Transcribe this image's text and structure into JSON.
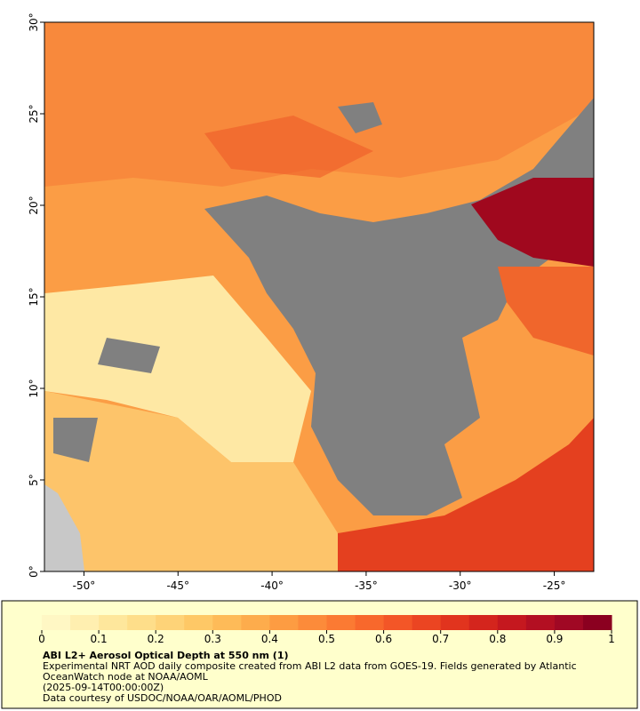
{
  "map": {
    "xlim": [
      -52.1,
      -22.9
    ],
    "ylim": [
      0,
      30
    ],
    "xticks": [
      {
        "value": -50,
        "label": "-50°"
      },
      {
        "value": -45,
        "label": "-45°"
      },
      {
        "value": -40,
        "label": "-40°"
      },
      {
        "value": -35,
        "label": "-35°"
      },
      {
        "value": -30,
        "label": "-30°"
      },
      {
        "value": -25,
        "label": "-25°"
      }
    ],
    "yticks": [
      {
        "value": 0,
        "label": "0°"
      },
      {
        "value": 5,
        "label": "5°"
      },
      {
        "value": 10,
        "label": "10°"
      },
      {
        "value": 15,
        "label": "15°"
      },
      {
        "value": 20,
        "label": "20°"
      },
      {
        "value": 25,
        "label": "25°"
      },
      {
        "value": 30,
        "label": "30°"
      }
    ]
  },
  "colorbar": {
    "lim": [
      0,
      1
    ],
    "ticks": [
      0,
      0.1,
      0.2,
      0.3,
      0.4,
      0.5,
      0.6,
      0.7,
      0.8,
      0.9,
      1
    ],
    "colors": [
      "#fff7c4",
      "#ffefb0",
      "#fee79c",
      "#fede8a",
      "#fed378",
      "#fec866",
      "#febb58",
      "#fdac4c",
      "#fd9c42",
      "#fc8b3a",
      "#fb7a33",
      "#f8682c",
      "#f35627",
      "#eb4522",
      "#e1341e",
      "#d4251d",
      "#c5181f",
      "#b30f22",
      "#a00824",
      "#8b0020"
    ]
  },
  "caption": {
    "title": "ABI L2+ Aerosol Optical Depth at 550 nm (1)",
    "description": "Experimental NRT AOD daily composite created from ABI L2 data from GOES-19. Fields generated by Atlantic OceanWatch node at NOAA/AOML",
    "timestamp": "(2025-09-14T00:00:00Z)",
    "credit": "Data courtesy of USDOC/NOAA/OAR/AOML/PHOD"
  }
}
